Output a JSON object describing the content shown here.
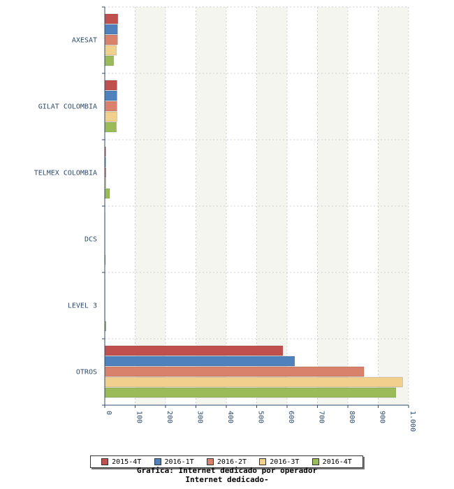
{
  "chart_data": {
    "type": "bar",
    "orientation": "horizontal",
    "categories": [
      "AXESAT",
      "GILAT COLOMBIA",
      "TELMEX COLOMBIA",
      "DCS",
      "LEVEL 3",
      "OTROS"
    ],
    "series": [
      {
        "name": "2015-4T",
        "color": "#c0504d",
        "values": [
          43,
          40,
          3,
          1,
          1,
          586
        ]
      },
      {
        "name": "2016-1T",
        "color": "#4f81bd",
        "values": [
          42,
          40,
          3,
          1,
          1,
          625
        ]
      },
      {
        "name": "2016-2T",
        "color": "#d9826b",
        "values": [
          42,
          40,
          4,
          1,
          1,
          853
        ]
      },
      {
        "name": "2016-3T",
        "color": "#f0d08c",
        "values": [
          38,
          40,
          4,
          1,
          1,
          980
        ]
      },
      {
        "name": "2016-4T",
        "color": "#9bbb59",
        "values": [
          29,
          38,
          16,
          2,
          4,
          958
        ]
      }
    ],
    "xlim": [
      0,
      1000
    ],
    "xticks": [
      "0",
      "100",
      "200",
      "300",
      "400",
      "500",
      "600",
      "700",
      "800",
      "900",
      "1.000"
    ],
    "grid": true,
    "legend_position": "bottom"
  },
  "caption": {
    "line1": "Grafica: Internet dedicado por operador",
    "line2": "Internet dedicado-"
  }
}
